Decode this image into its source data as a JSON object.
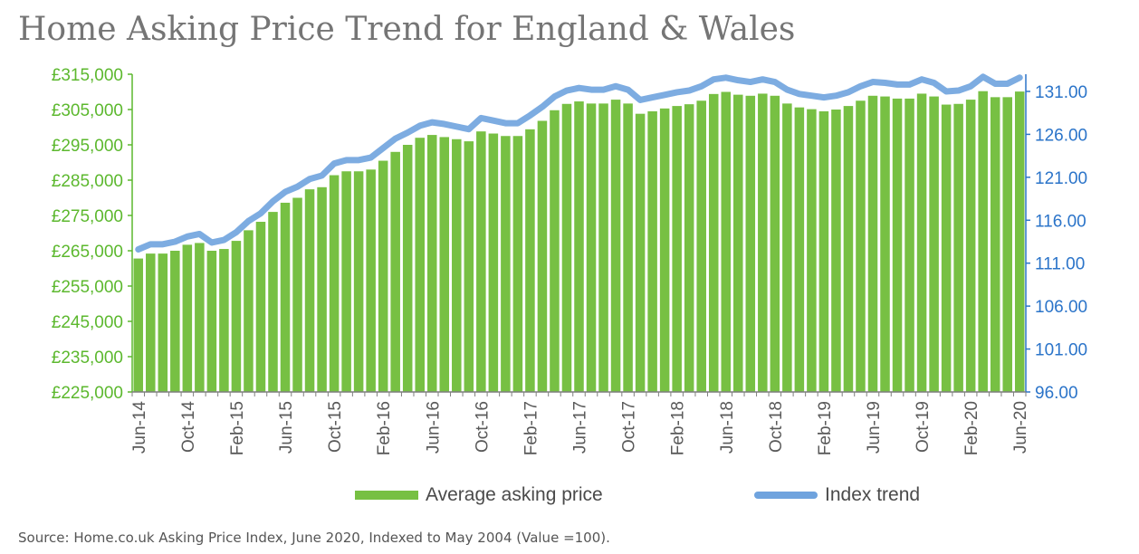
{
  "title": "Home Asking Price Trend for England & Wales",
  "source": "Source: Home.co.uk Asking Price Index, June 2020, Indexed to May 2004 (Value =100).",
  "colors": {
    "bars": "#77c043",
    "bar_left_axis": "#5cb82e",
    "index_line": "#6fa3de",
    "right_axis": "#2b74c9",
    "axis_text": "#595959"
  },
  "legend": {
    "bars": "Average asking price",
    "line": "Index trend"
  },
  "chart_data": {
    "type": "bar",
    "left_axis": {
      "ylim": [
        225000,
        315000
      ],
      "ticks": [
        "£225,000",
        "£235,000",
        "£245,000",
        "£255,000",
        "£265,000",
        "£275,000",
        "£285,000",
        "£295,000",
        "£305,000",
        "£315,000"
      ]
    },
    "right_axis": {
      "ylim": [
        96,
        133
      ],
      "ticks": [
        "96.00",
        "101.00",
        "106.00",
        "111.00",
        "116.00",
        "121.00",
        "126.00",
        "131.00"
      ]
    },
    "x_tick_labels": [
      "Jun-14",
      "Oct-14",
      "Feb-15",
      "Jun-15",
      "Oct-15",
      "Feb-16",
      "Jun-16",
      "Oct-16",
      "Feb-17",
      "Jun-17",
      "Oct-17",
      "Feb-18",
      "Jun-18",
      "Oct-18",
      "Feb-19",
      "Jun-19",
      "Oct-19",
      "Feb-20",
      "Jun-20"
    ],
    "categories": [
      "Jun-14",
      "Jul-14",
      "Aug-14",
      "Sep-14",
      "Oct-14",
      "Nov-14",
      "Dec-14",
      "Jan-15",
      "Feb-15",
      "Mar-15",
      "Apr-15",
      "May-15",
      "Jun-15",
      "Jul-15",
      "Aug-15",
      "Sep-15",
      "Oct-15",
      "Nov-15",
      "Dec-15",
      "Jan-16",
      "Feb-16",
      "Mar-16",
      "Apr-16",
      "May-16",
      "Jun-16",
      "Jul-16",
      "Aug-16",
      "Sep-16",
      "Oct-16",
      "Nov-16",
      "Dec-16",
      "Jan-17",
      "Feb-17",
      "Mar-17",
      "Apr-17",
      "May-17",
      "Jun-17",
      "Jul-17",
      "Aug-17",
      "Sep-17",
      "Oct-17",
      "Nov-17",
      "Dec-17",
      "Jan-18",
      "Feb-18",
      "Mar-18",
      "Apr-18",
      "May-18",
      "Jun-18",
      "Jul-18",
      "Aug-18",
      "Sep-18",
      "Oct-18",
      "Nov-18",
      "Dec-18",
      "Jan-19",
      "Feb-19",
      "Mar-19",
      "Apr-19",
      "May-19",
      "Jun-19",
      "Jul-19",
      "Aug-19",
      "Sep-19",
      "Oct-19",
      "Nov-19",
      "Dec-19",
      "Jan-20",
      "Feb-20",
      "Mar-20",
      "Apr-20",
      "May-20",
      "Jun-20"
    ],
    "series": [
      {
        "name": "Average asking price",
        "axis": "left",
        "values": [
          262800,
          264200,
          264200,
          265000,
          266700,
          267200,
          265000,
          265500,
          267800,
          270800,
          273200,
          276000,
          278600,
          280000,
          282400,
          283000,
          286400,
          287500,
          287500,
          288000,
          290500,
          293000,
          295000,
          297000,
          297800,
          297200,
          296600,
          296000,
          298800,
          298200,
          297500,
          297500,
          299400,
          301800,
          304800,
          306600,
          307300,
          306700,
          306700,
          307800,
          306700,
          303800,
          304500,
          305300,
          306000,
          306500,
          307500,
          309400,
          310000,
          309200,
          308900,
          309500,
          308900,
          306700,
          305600,
          305100,
          304500,
          305000,
          306000,
          307500,
          308900,
          308700,
          308100,
          308100,
          309500,
          308700,
          306400,
          306600,
          307800,
          310200,
          308500,
          308500,
          310100
        ]
      },
      {
        "name": "Index trend",
        "axis": "right",
        "values": [
          112.6,
          113.2,
          113.2,
          113.5,
          114.1,
          114.4,
          113.4,
          113.7,
          114.6,
          115.9,
          116.8,
          118.2,
          119.3,
          119.9,
          120.8,
          121.2,
          122.6,
          123.0,
          123.0,
          123.3,
          124.4,
          125.5,
          126.2,
          127.0,
          127.4,
          127.2,
          126.9,
          126.6,
          127.9,
          127.6,
          127.3,
          127.3,
          128.2,
          129.2,
          130.4,
          131.1,
          131.4,
          131.2,
          131.2,
          131.6,
          131.2,
          130.0,
          130.3,
          130.6,
          130.9,
          131.1,
          131.6,
          132.4,
          132.6,
          132.3,
          132.1,
          132.4,
          132.1,
          131.2,
          130.7,
          130.5,
          130.3,
          130.5,
          130.9,
          131.6,
          132.1,
          132.0,
          131.8,
          131.8,
          132.4,
          132.0,
          131.0,
          131.1,
          131.6,
          132.7,
          131.9,
          131.9,
          132.6
        ]
      }
    ],
    "legend_position": "bottom",
    "grid": false
  }
}
